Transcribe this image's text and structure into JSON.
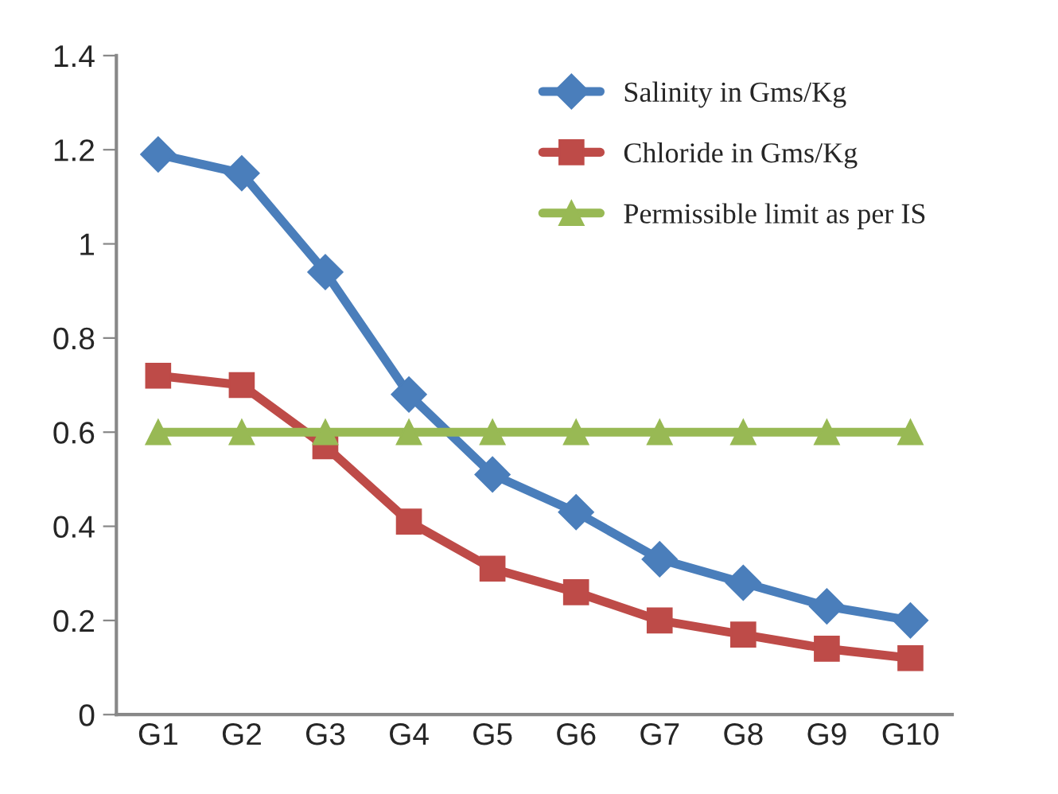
{
  "chart_data": {
    "type": "line",
    "categories": [
      "G1",
      "G2",
      "G3",
      "G4",
      "G5",
      "G6",
      "G7",
      "G8",
      "G9",
      "G10"
    ],
    "series": [
      {
        "name": "Salinity in Gms/Kg",
        "color": "#4a7ebb",
        "marker": "diamond",
        "values": [
          1.19,
          1.15,
          0.94,
          0.68,
          0.51,
          0.43,
          0.33,
          0.28,
          0.23,
          0.2
        ]
      },
      {
        "name": "Chloride in Gms/Kg",
        "color": "#be4b48",
        "marker": "square",
        "values": [
          0.72,
          0.7,
          0.57,
          0.41,
          0.31,
          0.26,
          0.2,
          0.17,
          0.14,
          0.12
        ]
      },
      {
        "name": "Permissible limit as per IS",
        "color": "#98b954",
        "marker": "triangle",
        "values": [
          0.6,
          0.6,
          0.6,
          0.6,
          0.6,
          0.6,
          0.6,
          0.6,
          0.6,
          0.6
        ]
      }
    ],
    "ylim": [
      0,
      1.4
    ],
    "yticks": [
      0,
      0.2,
      0.4,
      0.6,
      0.8,
      1,
      1.2,
      1.4
    ],
    "grid": false,
    "legend": "top right",
    "line_style": "solid"
  }
}
